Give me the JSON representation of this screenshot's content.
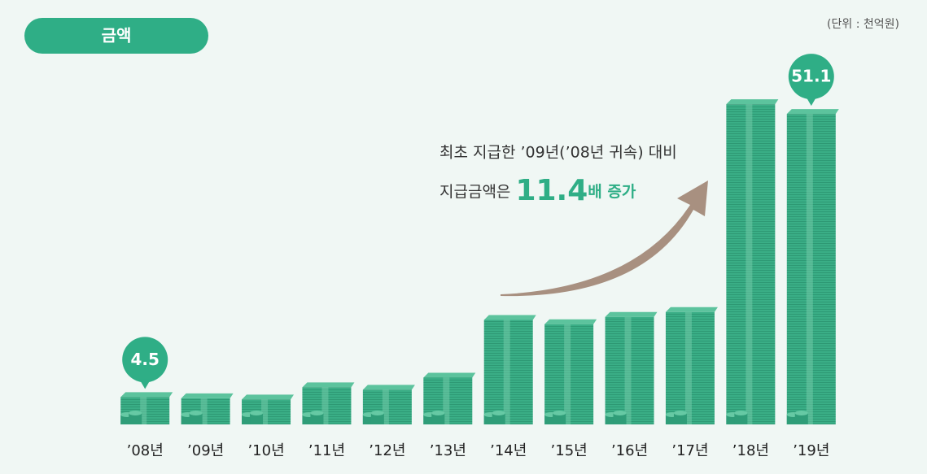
{
  "chart_data": {
    "type": "bar",
    "badge": "금액",
    "unit_note": "(단위 : 천억원)",
    "annotation": {
      "line1": "최초 지급한 ’09년(’08년 귀속) 대비",
      "line2_prefix": "지급금액은 ",
      "highlight": "11.4",
      "line2_suffix": "배 증가"
    },
    "categories": [
      "’08년",
      "’09년",
      "’10년",
      "’11년",
      "’12년",
      "’13년",
      "’14년",
      "’15년",
      "’16년",
      "’17년",
      "’18년",
      "’19년"
    ],
    "values": [
      4.5,
      4.3,
      4.1,
      6.1,
      5.7,
      7.7,
      17.2,
      16.5,
      17.7,
      18.5,
      52.7,
      51.1
    ],
    "value_labels": [
      "4.5",
      null,
      null,
      null,
      null,
      null,
      null,
      null,
      null,
      null,
      null,
      "51.1"
    ],
    "color": "#3aae86",
    "ylim": [
      0,
      55
    ]
  }
}
